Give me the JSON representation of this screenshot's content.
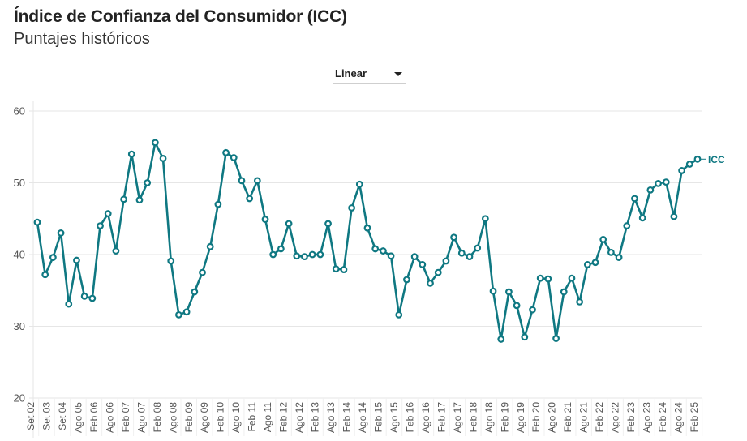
{
  "header": {
    "title": "Índice de Confianza del Consumidor (ICC)",
    "subtitle": "Puntajes históricos"
  },
  "scale_select": {
    "selected": "Linear"
  },
  "colors": {
    "line": "#0f7882",
    "grid": "#e6e6e6",
    "axis_text": "#555555"
  },
  "chart_data": {
    "type": "line",
    "title": "Índice de Confianza del Consumidor (ICC)",
    "subtitle": "Puntajes históricos",
    "xlabel": "",
    "ylabel": "",
    "ylim": [
      20,
      60
    ],
    "yticks": [
      20,
      30,
      40,
      50,
      60
    ],
    "grid": true,
    "legend": "inline-end-label",
    "x_tick_labels": [
      "Set 02",
      "Set 03",
      "Set 04",
      "Ago 05",
      "Feb 06",
      "Ago 06",
      "Feb 07",
      "Ago 07",
      "Feb 08",
      "Ago 08",
      "Feb 09",
      "Ago 09",
      "Feb 10",
      "Ago 10",
      "Feb 11",
      "Ago 11",
      "Feb 12",
      "Ago 12",
      "Feb 13",
      "Ago 13",
      "Feb 14",
      "Ago 14",
      "Feb 15",
      "Ago 15",
      "Feb 16",
      "Ago 16",
      "Feb 17",
      "Ago 17",
      "Feb 18",
      "Ago 18",
      "Feb 19",
      "Ago 19",
      "Feb 20",
      "Ago 20",
      "Feb 21",
      "Ago 21",
      "Feb 22",
      "Ago 22",
      "Feb 23",
      "Ago 23",
      "Feb 24",
      "Ago 24",
      "Feb 25"
    ],
    "series": [
      {
        "name": "ICC",
        "values": [
          44.5,
          37.2,
          39.6,
          43.0,
          33.1,
          39.2,
          34.2,
          33.9,
          44.0,
          45.7,
          40.5,
          47.7,
          54.0,
          47.6,
          50.0,
          55.6,
          53.4,
          39.1,
          31.6,
          32.0,
          34.8,
          37.5,
          41.1,
          47.0,
          54.2,
          53.5,
          50.3,
          47.8,
          50.3,
          44.9,
          40.0,
          40.8,
          44.3,
          39.8,
          39.7,
          40.0,
          40.0,
          44.3,
          38.0,
          37.9,
          46.5,
          49.8,
          43.7,
          40.8,
          40.5,
          39.8,
          31.6,
          36.5,
          39.7,
          38.6,
          36.0,
          37.5,
          39.1,
          42.4,
          40.2,
          39.7,
          40.9,
          45.0,
          34.9,
          28.2,
          34.8,
          32.9,
          28.5,
          32.3,
          36.7,
          36.6,
          28.3,
          34.8,
          36.7,
          33.4,
          38.6,
          38.9,
          42.1,
          40.3,
          39.6,
          44.0,
          47.8,
          45.1,
          49.0,
          49.9,
          50.1,
          45.3,
          51.7,
          52.6,
          53.3
        ]
      }
    ]
  }
}
